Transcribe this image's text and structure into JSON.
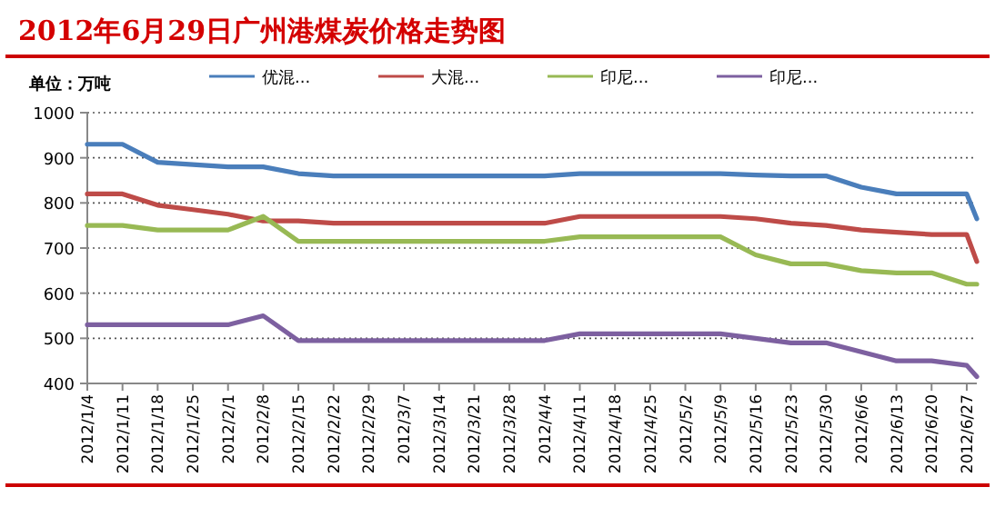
{
  "chart_data": {
    "type": "line",
    "title": "2012年6月29日广州港煤炭价格走势图",
    "ylabel": "单位：万吨",
    "x": [
      "2012-01-04",
      "2012-01-11",
      "2012-01-18",
      "2012-01-25",
      "2012-02-01",
      "2012-02-08",
      "2012-02-15",
      "2012-02-22",
      "2012-02-29",
      "2012-03-07",
      "2012-03-14",
      "2012-03-21",
      "2012-03-28",
      "2012-04-04",
      "2012-04-11",
      "2012-04-18",
      "2012-04-25",
      "2012-05-02",
      "2012-05-09",
      "2012-05-16",
      "2012-05-23",
      "2012-05-30",
      "2012-06-06",
      "2012-06-13",
      "2012-06-20",
      "2012-06-27",
      "2012-06-29"
    ],
    "xlim": [
      "2012-01-04",
      "2012-06-29"
    ],
    "xticks": [
      {
        "value": "2012-01-04",
        "label": "2012/1/4"
      },
      {
        "value": "2012-01-11",
        "label": "2012/1/11"
      },
      {
        "value": "2012-01-18",
        "label": "2012/1/18"
      },
      {
        "value": "2012-01-25",
        "label": "2012/1/25"
      },
      {
        "value": "2012-02-01",
        "label": "2012/2/1"
      },
      {
        "value": "2012-02-08",
        "label": "2012/2/8"
      },
      {
        "value": "2012-02-15",
        "label": "2012/2/15"
      },
      {
        "value": "2012-02-22",
        "label": "2012/2/22"
      },
      {
        "value": "2012-02-29",
        "label": "2012/2/29"
      },
      {
        "value": "2012-03-07",
        "label": "2012/3/7"
      },
      {
        "value": "2012-03-14",
        "label": "2012/3/14"
      },
      {
        "value": "2012-03-21",
        "label": "2012/3/21"
      },
      {
        "value": "2012-03-28",
        "label": "2012/3/28"
      },
      {
        "value": "2012-04-04",
        "label": "2012/4/4"
      },
      {
        "value": "2012-04-11",
        "label": "2012/4/11"
      },
      {
        "value": "2012-04-18",
        "label": "2012/4/18"
      },
      {
        "value": "2012-04-25",
        "label": "2012/4/25"
      },
      {
        "value": "2012-05-02",
        "label": "2012/5/2"
      },
      {
        "value": "2012-05-09",
        "label": "2012/5/9"
      },
      {
        "value": "2012-05-16",
        "label": "2012/5/16"
      },
      {
        "value": "2012-05-23",
        "label": "2012/5/23"
      },
      {
        "value": "2012-05-30",
        "label": "2012/5/30"
      },
      {
        "value": "2012-06-06",
        "label": "2012/6/6"
      },
      {
        "value": "2012-06-13",
        "label": "2012/6/13"
      },
      {
        "value": "2012-06-20",
        "label": "2012/6/20"
      },
      {
        "value": "2012-06-27",
        "label": "2012/6/27"
      }
    ],
    "ylim": [
      400,
      1000
    ],
    "yticks": [
      400,
      500,
      600,
      700,
      800,
      900,
      1000
    ],
    "grid": "y",
    "legend": "top",
    "series": [
      {
        "name": "优混...",
        "color": "#4a7ebb",
        "values": [
          930,
          930,
          890,
          885,
          880,
          880,
          865,
          860,
          860,
          860,
          860,
          860,
          860,
          860,
          865,
          865,
          865,
          865,
          865,
          862,
          860,
          860,
          835,
          820,
          820,
          820,
          765
        ]
      },
      {
        "name": "大混...",
        "color": "#be4b48",
        "values": [
          820,
          820,
          795,
          785,
          775,
          760,
          760,
          755,
          755,
          755,
          755,
          755,
          755,
          755,
          770,
          770,
          770,
          770,
          770,
          765,
          755,
          750,
          740,
          735,
          730,
          730,
          670
        ]
      },
      {
        "name": "印尼...",
        "color": "#98b954",
        "values": [
          750,
          750,
          740,
          740,
          740,
          770,
          715,
          715,
          715,
          715,
          715,
          715,
          715,
          715,
          725,
          725,
          725,
          725,
          725,
          685,
          665,
          665,
          650,
          645,
          645,
          620,
          620
        ]
      },
      {
        "name": "印尼...",
        "color": "#7d60a0",
        "values": [
          530,
          530,
          530,
          530,
          530,
          550,
          495,
          495,
          495,
          495,
          495,
          495,
          495,
          495,
          510,
          510,
          510,
          510,
          510,
          500,
          490,
          490,
          470,
          450,
          450,
          440,
          415
        ]
      }
    ]
  }
}
